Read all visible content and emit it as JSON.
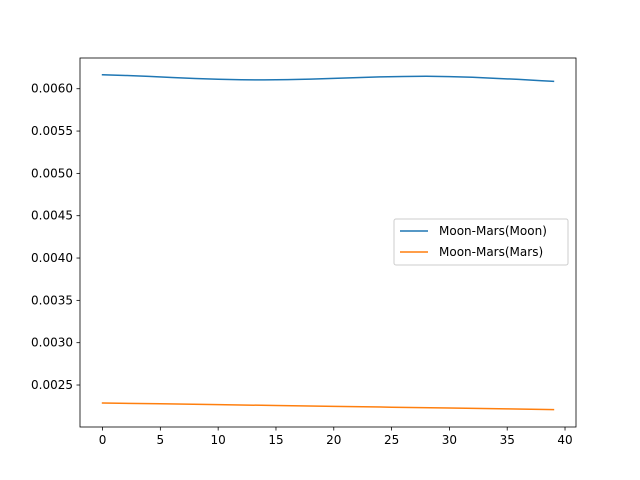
{
  "chart_data": {
    "type": "line",
    "title": "",
    "xlabel": "",
    "ylabel": "",
    "xlim": [
      -1.95,
      40.95
    ],
    "ylim": [
      0.002004,
      0.006363
    ],
    "xticks": [
      0,
      5,
      10,
      15,
      20,
      25,
      30,
      35,
      40
    ],
    "xtick_labels": [
      "0",
      "5",
      "10",
      "15",
      "20",
      "25",
      "30",
      "35",
      "40"
    ],
    "yticks": [
      0.0025,
      0.003,
      0.0035,
      0.004,
      0.0045,
      0.005,
      0.0055,
      0.006
    ],
    "ytick_labels": [
      "0.0025",
      "0.0030",
      "0.0035",
      "0.0040",
      "0.0045",
      "0.0050",
      "0.0055",
      "0.0060"
    ],
    "grid": false,
    "legend_position": "center-right",
    "series": [
      {
        "name": "Moon-Mars(Moon)",
        "color": "#1f77b4",
        "x": [
          0,
          2,
          4,
          6,
          8,
          10,
          12,
          14,
          16,
          18,
          20,
          22,
          24,
          26,
          28,
          30,
          32,
          34,
          36,
          38,
          39
        ],
        "values": [
          0.006165,
          0.006157,
          0.006146,
          0.006133,
          0.006121,
          0.006112,
          0.006106,
          0.006104,
          0.006107,
          0.006113,
          0.006122,
          0.006131,
          0.00614,
          0.006145,
          0.006147,
          0.006143,
          0.006135,
          0.006123,
          0.00611,
          0.006095,
          0.006087
        ]
      },
      {
        "name": "Moon-Mars(Mars)",
        "color": "#ff7f0e",
        "x": [
          0,
          5,
          10,
          15,
          20,
          25,
          30,
          35,
          39
        ],
        "values": [
          0.002288,
          0.002278,
          0.002268,
          0.002258,
          0.002248,
          0.002238,
          0.002228,
          0.002218,
          0.00221
        ]
      }
    ]
  }
}
